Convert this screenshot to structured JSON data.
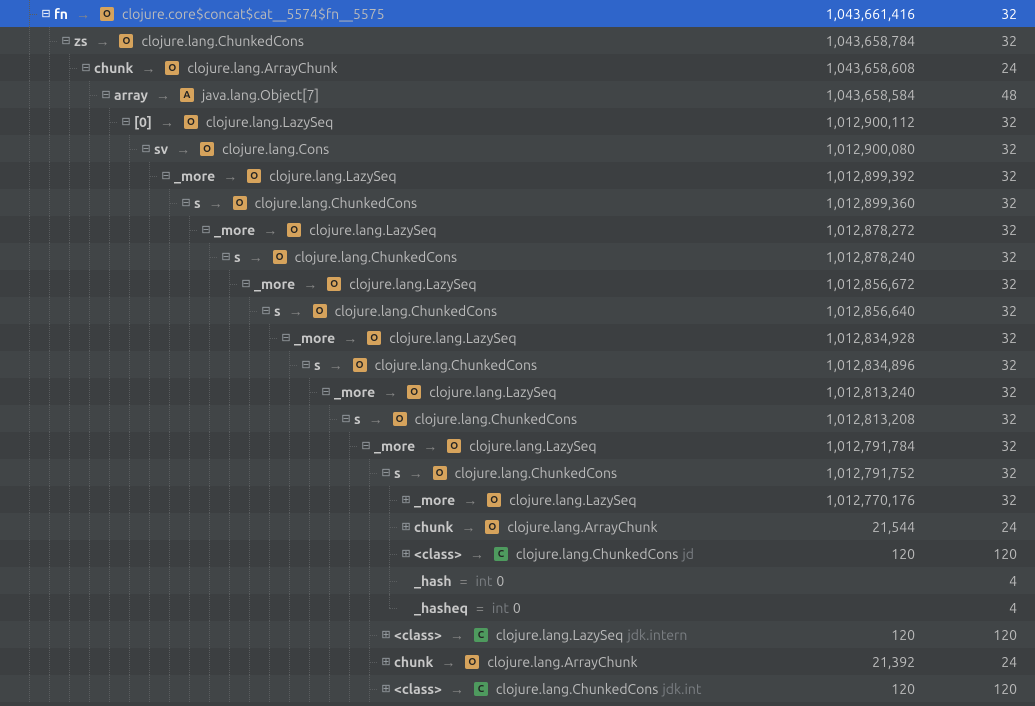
{
  "colors": {
    "badge_O": "#d6a35c",
    "badge_A": "#d6a35c",
    "badge_C": "#4e9a5e"
  },
  "glyphs": {
    "expanded": "⊟",
    "collapsed": "⊞",
    "none": ""
  },
  "rows": [
    {
      "depth": 2,
      "guides": [
        "blank",
        "tee"
      ],
      "twisty": "expanded",
      "selected": true,
      "field": "fn",
      "arrow": true,
      "badge": "O",
      "type": "clojure.core$concat$cat__5574$fn__5575",
      "retained": "1,043,661,416",
      "shallow": "32"
    },
    {
      "depth": 3,
      "guides": [
        "blank",
        "vert",
        "tee"
      ],
      "twisty": "expanded",
      "field": "zs",
      "arrow": true,
      "badge": "O",
      "type": "clojure.lang.ChunkedCons",
      "retained": "1,043,658,784",
      "shallow": "32"
    },
    {
      "depth": 4,
      "guides": [
        "blank",
        "vert",
        "vert",
        "tee"
      ],
      "twisty": "expanded",
      "field": "chunk",
      "arrow": true,
      "badge": "O",
      "type": "clojure.lang.ArrayChunk",
      "retained": "1,043,658,608",
      "shallow": "24"
    },
    {
      "depth": 5,
      "guides": [
        "blank",
        "vert",
        "vert",
        "vert",
        "tee"
      ],
      "twisty": "expanded",
      "field": "array",
      "arrow": true,
      "badge": "A",
      "type": "java.lang.Object[7]",
      "retained": "1,043,658,584",
      "shallow": "48"
    },
    {
      "depth": 6,
      "guides": [
        "blank",
        "vert",
        "vert",
        "vert",
        "vert",
        "tee"
      ],
      "twisty": "expanded",
      "field": "[0]",
      "arrow": true,
      "badge": "O",
      "type": "clojure.lang.LazySeq",
      "retained": "1,012,900,112",
      "shallow": "32"
    },
    {
      "depth": 7,
      "guides": [
        "blank",
        "vert",
        "vert",
        "vert",
        "vert",
        "vert",
        "tee"
      ],
      "twisty": "expanded",
      "field": "sv",
      "arrow": true,
      "badge": "O",
      "type": "clojure.lang.Cons",
      "retained": "1,012,900,080",
      "shallow": "32"
    },
    {
      "depth": 8,
      "guides": [
        "blank",
        "vert",
        "vert",
        "vert",
        "vert",
        "vert",
        "vert",
        "tee"
      ],
      "twisty": "expanded",
      "field": "_more",
      "arrow": true,
      "badge": "O",
      "type": "clojure.lang.LazySeq",
      "retained": "1,012,899,392",
      "shallow": "32"
    },
    {
      "depth": 9,
      "guides": [
        "blank",
        "vert",
        "vert",
        "vert",
        "vert",
        "vert",
        "vert",
        "vert",
        "tee"
      ],
      "twisty": "expanded",
      "field": "s",
      "arrow": true,
      "badge": "O",
      "type": "clojure.lang.ChunkedCons",
      "retained": "1,012,899,360",
      "shallow": "32"
    },
    {
      "depth": 10,
      "guides": [
        "blank",
        "vert",
        "vert",
        "vert",
        "vert",
        "vert",
        "vert",
        "vert",
        "vert",
        "tee"
      ],
      "twisty": "expanded",
      "field": "_more",
      "arrow": true,
      "badge": "O",
      "type": "clojure.lang.LazySeq",
      "retained": "1,012,878,272",
      "shallow": "32"
    },
    {
      "depth": 11,
      "guides": [
        "blank",
        "vert",
        "vert",
        "vert",
        "vert",
        "vert",
        "vert",
        "vert",
        "vert",
        "vert",
        "tee"
      ],
      "twisty": "expanded",
      "field": "s",
      "arrow": true,
      "badge": "O",
      "type": "clojure.lang.ChunkedCons",
      "retained": "1,012,878,240",
      "shallow": "32"
    },
    {
      "depth": 12,
      "guides": [
        "blank",
        "vert",
        "vert",
        "vert",
        "vert",
        "vert",
        "vert",
        "vert",
        "vert",
        "vert",
        "vert",
        "tee"
      ],
      "twisty": "expanded",
      "field": "_more",
      "arrow": true,
      "badge": "O",
      "type": "clojure.lang.LazySeq",
      "retained": "1,012,856,672",
      "shallow": "32"
    },
    {
      "depth": 13,
      "guides": [
        "blank",
        "vert",
        "vert",
        "vert",
        "vert",
        "vert",
        "vert",
        "vert",
        "vert",
        "vert",
        "vert",
        "vert",
        "tee"
      ],
      "twisty": "expanded",
      "field": "s",
      "arrow": true,
      "badge": "O",
      "type": "clojure.lang.ChunkedCons",
      "retained": "1,012,856,640",
      "shallow": "32"
    },
    {
      "depth": 14,
      "guides": [
        "blank",
        "vert",
        "vert",
        "vert",
        "vert",
        "vert",
        "vert",
        "vert",
        "vert",
        "vert",
        "vert",
        "vert",
        "vert",
        "tee"
      ],
      "twisty": "expanded",
      "field": "_more",
      "arrow": true,
      "badge": "O",
      "type": "clojure.lang.LazySeq",
      "retained": "1,012,834,928",
      "shallow": "32"
    },
    {
      "depth": 15,
      "guides": [
        "blank",
        "vert",
        "vert",
        "vert",
        "vert",
        "vert",
        "vert",
        "vert",
        "vert",
        "vert",
        "vert",
        "vert",
        "vert",
        "vert",
        "tee"
      ],
      "twisty": "expanded",
      "field": "s",
      "arrow": true,
      "badge": "O",
      "type": "clojure.lang.ChunkedCons",
      "retained": "1,012,834,896",
      "shallow": "32"
    },
    {
      "depth": 16,
      "guides": [
        "blank",
        "vert",
        "vert",
        "vert",
        "vert",
        "vert",
        "vert",
        "vert",
        "vert",
        "vert",
        "vert",
        "vert",
        "vert",
        "vert",
        "vert",
        "tee"
      ],
      "twisty": "expanded",
      "field": "_more",
      "arrow": true,
      "badge": "O",
      "type": "clojure.lang.LazySeq",
      "retained": "1,012,813,240",
      "shallow": "32"
    },
    {
      "depth": 17,
      "guides": [
        "blank",
        "vert",
        "vert",
        "vert",
        "vert",
        "vert",
        "vert",
        "vert",
        "vert",
        "vert",
        "vert",
        "vert",
        "vert",
        "vert",
        "vert",
        "vert",
        "tee"
      ],
      "twisty": "expanded",
      "field": "s",
      "arrow": true,
      "badge": "O",
      "type": "clojure.lang.ChunkedCons",
      "retained": "1,012,813,208",
      "shallow": "32"
    },
    {
      "depth": 18,
      "guides": [
        "blank",
        "vert",
        "vert",
        "vert",
        "vert",
        "vert",
        "vert",
        "vert",
        "vert",
        "vert",
        "vert",
        "vert",
        "vert",
        "vert",
        "vert",
        "vert",
        "vert",
        "tee"
      ],
      "twisty": "expanded",
      "field": "_more",
      "arrow": true,
      "badge": "O",
      "type": "clojure.lang.LazySeq",
      "retained": "1,012,791,784",
      "shallow": "32"
    },
    {
      "depth": 19,
      "guides": [
        "blank",
        "vert",
        "vert",
        "vert",
        "vert",
        "vert",
        "vert",
        "vert",
        "vert",
        "vert",
        "vert",
        "vert",
        "vert",
        "vert",
        "vert",
        "vert",
        "vert",
        "vert",
        "tee"
      ],
      "twisty": "expanded",
      "field": "s",
      "arrow": true,
      "badge": "O",
      "type": "clojure.lang.ChunkedCons",
      "retained": "1,012,791,752",
      "shallow": "32"
    },
    {
      "depth": 20,
      "guides": [
        "blank",
        "vert",
        "vert",
        "vert",
        "vert",
        "vert",
        "vert",
        "vert",
        "vert",
        "vert",
        "vert",
        "vert",
        "vert",
        "vert",
        "vert",
        "vert",
        "vert",
        "vert",
        "vert",
        "tee"
      ],
      "twisty": "collapsed",
      "field": "_more",
      "arrow": true,
      "badge": "O",
      "type": "clojure.lang.LazySeq",
      "retained": "1,012,770,176",
      "shallow": "32"
    },
    {
      "depth": 20,
      "guides": [
        "blank",
        "vert",
        "vert",
        "vert",
        "vert",
        "vert",
        "vert",
        "vert",
        "vert",
        "vert",
        "vert",
        "vert",
        "vert",
        "vert",
        "vert",
        "vert",
        "vert",
        "vert",
        "vert",
        "tee"
      ],
      "twisty": "collapsed",
      "field": "chunk",
      "arrow": true,
      "badge": "O",
      "type": "clojure.lang.ArrayChunk",
      "retained": "21,544",
      "shallow": "24"
    },
    {
      "depth": 20,
      "guides": [
        "blank",
        "vert",
        "vert",
        "vert",
        "vert",
        "vert",
        "vert",
        "vert",
        "vert",
        "vert",
        "vert",
        "vert",
        "vert",
        "vert",
        "vert",
        "vert",
        "vert",
        "vert",
        "vert",
        "tee"
      ],
      "twisty": "collapsed",
      "field": "<class>",
      "arrow": true,
      "badge": "C",
      "type": "clojure.lang.ChunkedCons",
      "dim": "jd",
      "retained": "120",
      "shallow": "120"
    },
    {
      "depth": 20,
      "guides": [
        "blank",
        "vert",
        "vert",
        "vert",
        "vert",
        "vert",
        "vert",
        "vert",
        "vert",
        "vert",
        "vert",
        "vert",
        "vert",
        "vert",
        "vert",
        "vert",
        "vert",
        "vert",
        "vert",
        "tee"
      ],
      "twisty": "none",
      "field": "_hash",
      "arrow": false,
      "eq": true,
      "int": "int",
      "val": "0",
      "retained": "",
      "shallow": "4"
    },
    {
      "depth": 20,
      "guides": [
        "blank",
        "vert",
        "vert",
        "vert",
        "vert",
        "vert",
        "vert",
        "vert",
        "vert",
        "vert",
        "vert",
        "vert",
        "vert",
        "vert",
        "vert",
        "vert",
        "vert",
        "vert",
        "vert",
        "elbow"
      ],
      "twisty": "none",
      "field": "_hasheq",
      "arrow": false,
      "eq": true,
      "int": "int",
      "val": "0",
      "retained": "",
      "shallow": "4"
    },
    {
      "depth": 19,
      "guides": [
        "blank",
        "vert",
        "vert",
        "vert",
        "vert",
        "vert",
        "vert",
        "vert",
        "vert",
        "vert",
        "vert",
        "vert",
        "vert",
        "vert",
        "vert",
        "vert",
        "vert",
        "vert",
        "tee"
      ],
      "twisty": "collapsed",
      "field": "<class>",
      "arrow": true,
      "badge": "C",
      "type": "clojure.lang.LazySeq",
      "dim": "jdk.intern",
      "retained": "120",
      "shallow": "120"
    },
    {
      "depth": 19,
      "guides": [
        "blank",
        "vert",
        "vert",
        "vert",
        "vert",
        "vert",
        "vert",
        "vert",
        "vert",
        "vert",
        "vert",
        "vert",
        "vert",
        "vert",
        "vert",
        "vert",
        "vert",
        "vert",
        "tee"
      ],
      "twisty": "collapsed",
      "field": "chunk",
      "arrow": true,
      "badge": "O",
      "type": "clojure.lang.ArrayChunk",
      "retained": "21,392",
      "shallow": "24"
    },
    {
      "depth": 19,
      "guides": [
        "blank",
        "vert",
        "vert",
        "vert",
        "vert",
        "vert",
        "vert",
        "vert",
        "vert",
        "vert",
        "vert",
        "vert",
        "vert",
        "vert",
        "vert",
        "vert",
        "vert",
        "vert",
        "tee"
      ],
      "twisty": "collapsed",
      "field": "<class>",
      "arrow": true,
      "badge": "C",
      "type": "clojure.lang.ChunkedCons",
      "dim": "jdk.int",
      "retained": "120",
      "shallow": "120"
    }
  ]
}
